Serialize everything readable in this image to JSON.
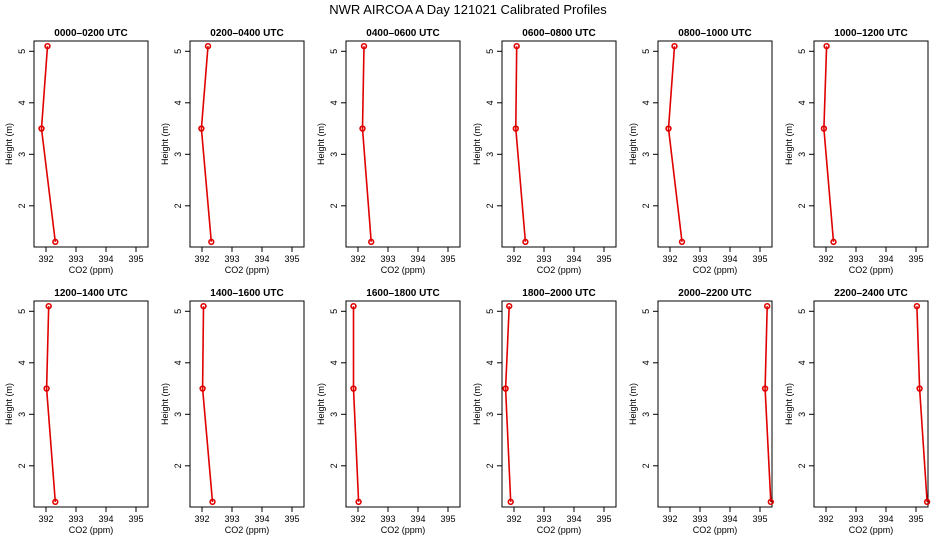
{
  "title": "NWR AIRCOA A  Day 121021  Calibrated Profiles",
  "colors": {
    "line": "#e00000",
    "axis": "#000000",
    "background": "#ffffff"
  },
  "chart_data": [
    {
      "type": "line",
      "title": "0000–0200 UTC",
      "xlabel": "CO2 (ppm)",
      "ylabel": "Height (m)",
      "xlim": [
        391.6,
        395.4
      ],
      "ylim": [
        1.2,
        5.2
      ],
      "xticks": [
        392,
        393,
        394,
        395
      ],
      "yticks": [
        2,
        3,
        4,
        5
      ],
      "series": [
        {
          "x": [
            392.31,
            391.85,
            392.05
          ],
          "y": [
            1.3,
            3.5,
            5.1
          ]
        }
      ]
    },
    {
      "type": "line",
      "title": "0200–0400 UTC",
      "xlabel": "CO2 (ppm)",
      "ylabel": "Height (m)",
      "xlim": [
        391.6,
        395.4
      ],
      "ylim": [
        1.2,
        5.2
      ],
      "xticks": [
        392,
        393,
        394,
        395
      ],
      "yticks": [
        2,
        3,
        4,
        5
      ],
      "series": [
        {
          "x": [
            392.31,
            391.98,
            392.2
          ],
          "y": [
            1.3,
            3.5,
            5.1
          ]
        }
      ]
    },
    {
      "type": "line",
      "title": "0400–0600 UTC",
      "xlabel": "CO2 (ppm)",
      "ylabel": "Height (m)",
      "xlim": [
        391.6,
        395.4
      ],
      "ylim": [
        1.2,
        5.2
      ],
      "xticks": [
        392,
        393,
        394,
        395
      ],
      "yticks": [
        2,
        3,
        4,
        5
      ],
      "series": [
        {
          "x": [
            392.44,
            392.15,
            392.2
          ],
          "y": [
            1.3,
            3.5,
            5.1
          ]
        }
      ]
    },
    {
      "type": "line",
      "title": "0600–0800 UTC",
      "xlabel": "CO2 (ppm)",
      "ylabel": "Height (m)",
      "xlim": [
        391.6,
        395.4
      ],
      "ylim": [
        1.2,
        5.2
      ],
      "xticks": [
        392,
        393,
        394,
        395
      ],
      "yticks": [
        2,
        3,
        4,
        5
      ],
      "series": [
        {
          "x": [
            392.38,
            392.06,
            392.09
          ],
          "y": [
            1.3,
            3.5,
            5.1
          ]
        }
      ]
    },
    {
      "type": "line",
      "title": "0800–1000 UTC",
      "xlabel": "CO2 (ppm)",
      "ylabel": "Height (m)",
      "xlim": [
        391.6,
        395.4
      ],
      "ylim": [
        1.2,
        5.2
      ],
      "xticks": [
        392,
        393,
        394,
        395
      ],
      "yticks": [
        2,
        3,
        4,
        5
      ],
      "series": [
        {
          "x": [
            392.4,
            391.95,
            392.15
          ],
          "y": [
            1.3,
            3.5,
            5.1
          ]
        }
      ]
    },
    {
      "type": "line",
      "title": "1000–1200 UTC",
      "xlabel": "CO2 (ppm)",
      "ylabel": "Height (m)",
      "xlim": [
        391.6,
        395.4
      ],
      "ylim": [
        1.2,
        5.2
      ],
      "xticks": [
        392,
        393,
        394,
        395
      ],
      "yticks": [
        2,
        3,
        4,
        5
      ],
      "series": [
        {
          "x": [
            392.25,
            391.93,
            392.02
          ],
          "y": [
            1.3,
            3.5,
            5.1
          ]
        }
      ]
    },
    {
      "type": "line",
      "title": "1200–1400 UTC",
      "xlabel": "CO2 (ppm)",
      "ylabel": "Height (m)",
      "xlim": [
        391.6,
        395.4
      ],
      "ylim": [
        1.2,
        5.2
      ],
      "xticks": [
        392,
        393,
        394,
        395
      ],
      "yticks": [
        2,
        3,
        4,
        5
      ],
      "series": [
        {
          "x": [
            392.31,
            392.02,
            392.09
          ],
          "y": [
            1.3,
            3.5,
            5.1
          ]
        }
      ]
    },
    {
      "type": "line",
      "title": "1400–1600 UTC",
      "xlabel": "CO2 (ppm)",
      "ylabel": "Height (m)",
      "xlim": [
        391.6,
        395.4
      ],
      "ylim": [
        1.2,
        5.2
      ],
      "xticks": [
        392,
        393,
        394,
        395
      ],
      "yticks": [
        2,
        3,
        4,
        5
      ],
      "series": [
        {
          "x": [
            392.35,
            392.02,
            392.05
          ],
          "y": [
            1.3,
            3.5,
            5.1
          ]
        }
      ]
    },
    {
      "type": "line",
      "title": "1600–1800 UTC",
      "xlabel": "CO2 (ppm)",
      "ylabel": "Height (m)",
      "xlim": [
        391.6,
        395.4
      ],
      "ylim": [
        1.2,
        5.2
      ],
      "xticks": [
        392,
        393,
        394,
        395
      ],
      "yticks": [
        2,
        3,
        4,
        5
      ],
      "series": [
        {
          "x": [
            392.02,
            391.85,
            391.85
          ],
          "y": [
            1.3,
            3.5,
            5.1
          ]
        }
      ]
    },
    {
      "type": "line",
      "title": "1800–2000 UTC",
      "xlabel": "CO2 (ppm)",
      "ylabel": "Height (m)",
      "xlim": [
        391.6,
        395.4
      ],
      "ylim": [
        1.2,
        5.2
      ],
      "xticks": [
        392,
        393,
        394,
        395
      ],
      "yticks": [
        2,
        3,
        4,
        5
      ],
      "series": [
        {
          "x": [
            391.89,
            391.72,
            391.84
          ],
          "y": [
            1.3,
            3.5,
            5.1
          ]
        }
      ]
    },
    {
      "type": "line",
      "title": "2000–2200 UTC",
      "xlabel": "CO2 (ppm)",
      "ylabel": "Height (m)",
      "xlim": [
        391.6,
        395.4
      ],
      "ylim": [
        1.2,
        5.2
      ],
      "xticks": [
        392,
        393,
        394,
        395
      ],
      "yticks": [
        2,
        3,
        4,
        5
      ],
      "series": [
        {
          "x": [
            395.36,
            395.17,
            395.24
          ],
          "y": [
            1.3,
            3.5,
            5.1
          ]
        }
      ]
    },
    {
      "type": "line",
      "title": "2200–2400 UTC",
      "xlabel": "CO2 (ppm)",
      "ylabel": "Height (m)",
      "xlim": [
        391.6,
        395.4
      ],
      "ylim": [
        1.2,
        5.2
      ],
      "xticks": [
        392,
        393,
        394,
        395
      ],
      "yticks": [
        2,
        3,
        4,
        5
      ],
      "series": [
        {
          "x": [
            395.37,
            395.12,
            395.03
          ],
          "y": [
            1.3,
            3.5,
            5.1
          ]
        }
      ]
    }
  ]
}
